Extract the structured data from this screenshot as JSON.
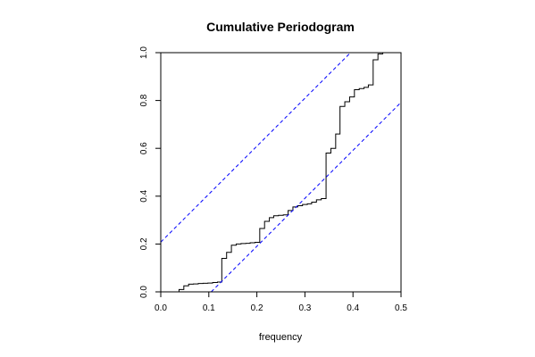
{
  "chart_data": {
    "type": "line",
    "title": "Cumulative Periodogram",
    "xlabel": "frequency",
    "ylabel": "",
    "xlim": [
      0.0,
      0.5
    ],
    "ylim": [
      0.0,
      1.0
    ],
    "xticks": [
      "0.0",
      "0.1",
      "0.2",
      "0.3",
      "0.4",
      "0.5"
    ],
    "yticks": [
      "0.0",
      "0.2",
      "0.4",
      "0.6",
      "0.8",
      "1.0"
    ],
    "grid": false,
    "series": [
      {
        "style": "step",
        "color": "#000000",
        "x": [
          0.0,
          0.038,
          0.048,
          0.058,
          0.068,
          0.078,
          0.088,
          0.098,
          0.108,
          0.118,
          0.127,
          0.137,
          0.147,
          0.157,
          0.167,
          0.177,
          0.186,
          0.196,
          0.206,
          0.216,
          0.226,
          0.235,
          0.245,
          0.255,
          0.265,
          0.275,
          0.285,
          0.295,
          0.305,
          0.314,
          0.324,
          0.334,
          0.344,
          0.354,
          0.364,
          0.373,
          0.383,
          0.393,
          0.403,
          0.413,
          0.423,
          0.432,
          0.442,
          0.452,
          0.462,
          0.472,
          0.482
        ],
        "y": [
          0.0,
          0.01,
          0.025,
          0.032,
          0.033,
          0.035,
          0.036,
          0.037,
          0.039,
          0.041,
          0.14,
          0.165,
          0.195,
          0.2,
          0.202,
          0.203,
          0.205,
          0.207,
          0.265,
          0.295,
          0.31,
          0.318,
          0.32,
          0.322,
          0.34,
          0.355,
          0.36,
          0.365,
          0.368,
          0.375,
          0.385,
          0.39,
          0.58,
          0.6,
          0.66,
          0.775,
          0.795,
          0.815,
          0.845,
          0.85,
          0.855,
          0.865,
          0.97,
          0.995,
          1.0,
          1.0,
          1.0
        ]
      },
      {
        "style": "dashed",
        "color": "#0000ff",
        "x": [
          0.0,
          0.395
        ],
        "y": [
          0.208,
          1.0
        ]
      },
      {
        "style": "dashed",
        "color": "#0000ff",
        "x": [
          0.105,
          0.5
        ],
        "y": [
          0.0,
          0.792
        ]
      }
    ]
  }
}
